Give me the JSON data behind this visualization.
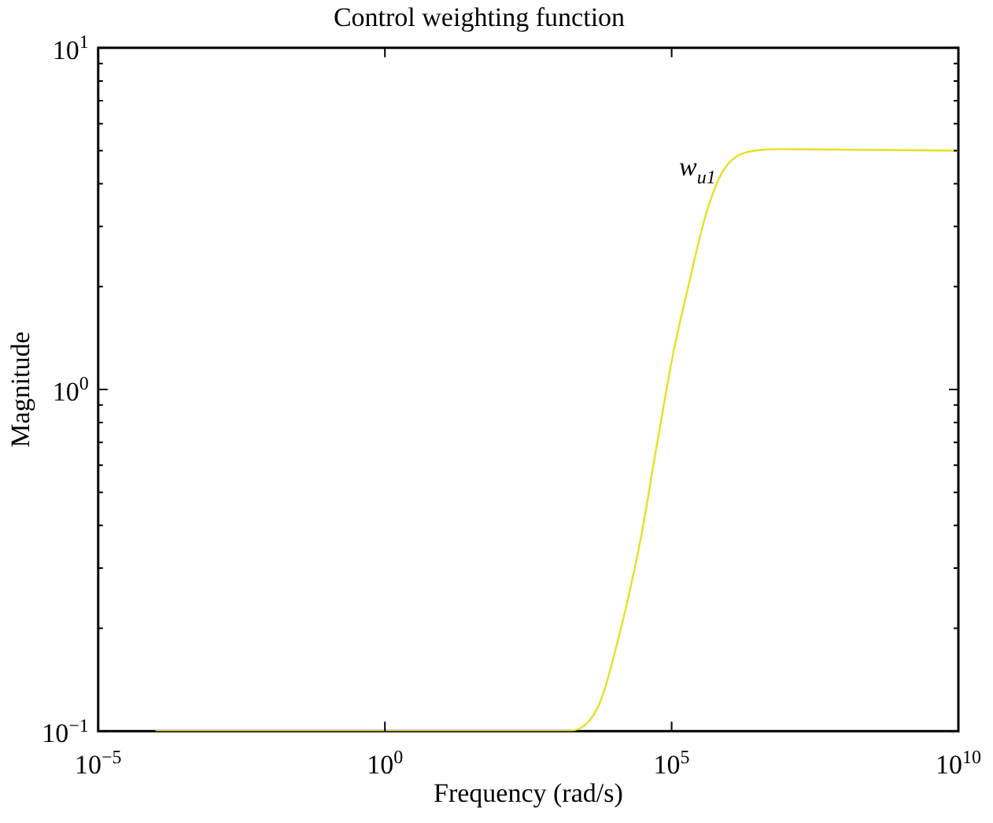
{
  "chart_data": {
    "type": "line",
    "title": "Control weighting function",
    "xlabel": "Frequency (rad/s)",
    "ylabel": "Magnitude",
    "log": "xy",
    "x": [
      0.0001,
      1,
      100,
      1000,
      1350,
      5100,
      12000,
      29000,
      55000,
      107000,
      204000,
      389000,
      759000,
      1820000,
      8300000,
      10000000000
    ],
    "series": [
      {
        "name": "w$_{u1}$",
        "color": "#e8e020",
        "values": [
          0.1,
          0.1,
          0.1,
          0.1,
          0.1,
          0.117,
          0.189,
          0.367,
          0.686,
          1.28,
          2.07,
          3.22,
          4.32,
          4.92,
          5.05,
          5
        ]
      }
    ],
    "xlim": [
      1e-05,
      10000000000
    ],
    "ylim": [
      0.1,
      10
    ],
    "xticks": [
      {
        "value": 1e-05,
        "label": "10$^{−5}$"
      },
      {
        "value": 1,
        "label": "10$^{0}$"
      },
      {
        "value": 100000,
        "label": "10$^{5}$"
      },
      {
        "value": 10000000000,
        "label": "10$^{10}$"
      }
    ],
    "yticks": [
      {
        "value": 0.1,
        "label": "10$^{−1}$"
      },
      {
        "value": 0.2,
        "label": null
      },
      {
        "value": 0.3,
        "label": null
      },
      {
        "value": 0.4,
        "label": null
      },
      {
        "value": 0.5,
        "label": null
      },
      {
        "value": 0.6,
        "label": null
      },
      {
        "value": 0.7,
        "label": null
      },
      {
        "value": 0.8,
        "label": null
      },
      {
        "value": 0.9,
        "label": null
      },
      {
        "value": 1,
        "label": "10$^{0}$"
      },
      {
        "value": 2,
        "label": null
      },
      {
        "value": 3,
        "label": null
      },
      {
        "value": 4,
        "label": null
      },
      {
        "value": 5,
        "label": null
      },
      {
        "value": 6,
        "label": null
      },
      {
        "value": 7,
        "label": null
      },
      {
        "value": 8,
        "label": null
      },
      {
        "value": 9,
        "label": null
      },
      {
        "value": 10,
        "label": "10$^{1}$"
      }
    ],
    "marker": "none",
    "line_style": "solid"
  }
}
